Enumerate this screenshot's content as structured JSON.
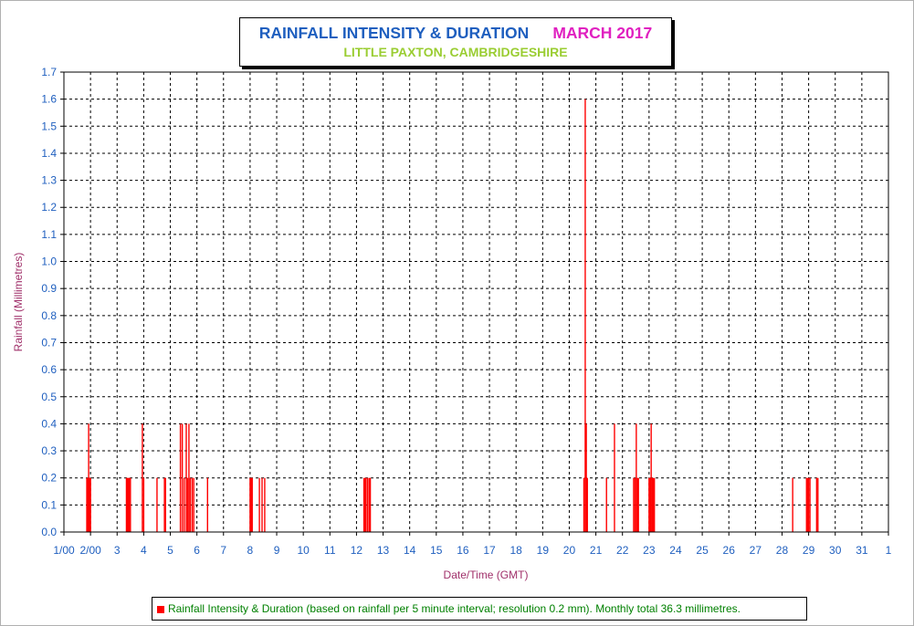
{
  "chart_data": {
    "type": "bar",
    "title": "RAINFALL INTENSITY & DURATION",
    "title_month": "MARCH 2017",
    "subtitle": "LITTLE PAXTON, CAMBRIDGESHIRE",
    "ylabel": "Rainfall (Millimetres)",
    "xlabel": "Date/Time (GMT)",
    "ylim": [
      0,
      1.7
    ],
    "y_ticks": [
      "0.0",
      "0.1",
      "0.2",
      "0.3",
      "0.4",
      "0.5",
      "0.6",
      "0.7",
      "0.8",
      "0.9",
      "1.0",
      "1.1",
      "1.2",
      "1.3",
      "1.4",
      "1.5",
      "1.6",
      "1.7"
    ],
    "xlim": [
      0,
      31
    ],
    "x_tick_labels": [
      "1/00",
      "2/00",
      "3",
      "4",
      "5",
      "6",
      "7",
      "8",
      "9",
      "10",
      "11",
      "12",
      "13",
      "14",
      "15",
      "16",
      "17",
      "18",
      "19",
      "20",
      "21",
      "22",
      "23",
      "24",
      "25",
      "26",
      "27",
      "28",
      "29",
      "30",
      "31",
      "1"
    ],
    "grid": true,
    "legend_position": "bottom",
    "series": [
      {
        "name": "Rainfall Intensity & Duration",
        "legend_text": "Rainfall Intensity & Duration (based on rainfall per 5 minute interval; resolution 0.2 mm). Monthly total 36.3 millimetres.",
        "color": "#ff0000",
        "points": [
          [
            0.86,
            0.2
          ],
          [
            0.9,
            0.2
          ],
          [
            0.93,
            0.4
          ],
          [
            0.96,
            0.2
          ],
          [
            1.0,
            0.2
          ],
          [
            2.35,
            0.2
          ],
          [
            2.39,
            0.2
          ],
          [
            2.42,
            0.2
          ],
          [
            2.46,
            0.2
          ],
          [
            2.5,
            0.2
          ],
          [
            2.95,
            0.4
          ],
          [
            3.0,
            0.2
          ],
          [
            3.5,
            0.2
          ],
          [
            3.78,
            0.2
          ],
          [
            3.82,
            0.2
          ],
          [
            4.38,
            0.4
          ],
          [
            4.45,
            0.4
          ],
          [
            4.52,
            0.2
          ],
          [
            4.6,
            0.4
          ],
          [
            4.65,
            0.2
          ],
          [
            4.7,
            0.4
          ],
          [
            4.75,
            0.2
          ],
          [
            4.82,
            0.2
          ],
          [
            4.88,
            0.2
          ],
          [
            5.4,
            0.2
          ],
          [
            7.0,
            0.2
          ],
          [
            7.04,
            0.2
          ],
          [
            7.08,
            0.2
          ],
          [
            7.35,
            0.2
          ],
          [
            7.45,
            0.2
          ],
          [
            7.55,
            0.2
          ],
          [
            11.28,
            0.2
          ],
          [
            11.32,
            0.2
          ],
          [
            11.36,
            0.2
          ],
          [
            11.42,
            0.2
          ],
          [
            11.48,
            0.2
          ],
          [
            11.52,
            0.2
          ],
          [
            19.55,
            0.2
          ],
          [
            19.6,
            1.6
          ],
          [
            19.64,
            0.4
          ],
          [
            19.68,
            0.2
          ],
          [
            20.4,
            0.2
          ],
          [
            20.7,
            0.4
          ],
          [
            21.42,
            0.2
          ],
          [
            21.47,
            0.2
          ],
          [
            21.52,
            0.4
          ],
          [
            21.56,
            0.2
          ],
          [
            21.6,
            0.2
          ],
          [
            22.0,
            0.2
          ],
          [
            22.04,
            0.2
          ],
          [
            22.08,
            0.4
          ],
          [
            22.12,
            0.2
          ],
          [
            22.16,
            0.2
          ],
          [
            22.2,
            0.2
          ],
          [
            27.4,
            0.2
          ],
          [
            27.92,
            0.2
          ],
          [
            27.96,
            0.2
          ],
          [
            28.0,
            0.2
          ],
          [
            28.05,
            0.2
          ],
          [
            28.3,
            0.2
          ],
          [
            28.35,
            0.2
          ]
        ]
      }
    ]
  }
}
